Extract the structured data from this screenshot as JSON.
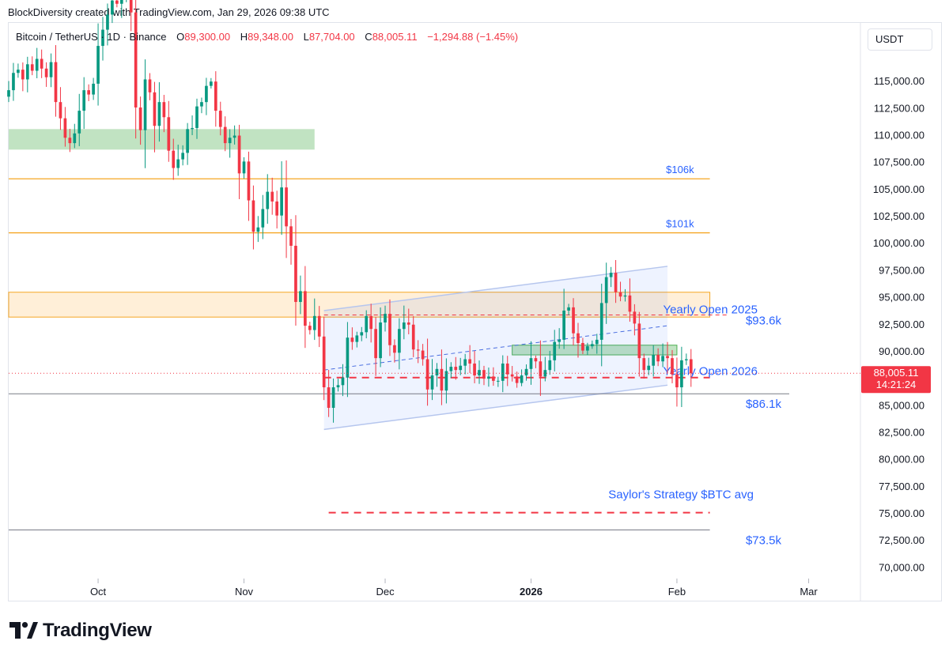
{
  "header": {
    "attribution": "BlockDiversity created with TradingView.com, Jan 29, 2026 09:38 UTC"
  },
  "legend": {
    "symbol": "Bitcoin / TetherUS · 1D · Binance",
    "open_label": "O",
    "open": "89,300.00",
    "high_label": "H",
    "high": "89,348.00",
    "low_label": "L",
    "low": "87,704.00",
    "close_label": "C",
    "close": "88,005.11",
    "change": "−1,294.88 (−1.45%)"
  },
  "currency_button": "USDT",
  "brand": {
    "name": "TradingView"
  },
  "colors": {
    "up": "#089981",
    "down": "#f23645",
    "level_orange": "#f5a623",
    "annotation_blue": "#2962ff",
    "channel_fill": "#e3ecfb"
  },
  "chart_data": {
    "type": "candlestick",
    "title": "",
    "ylim": [
      69000,
      120500
    ],
    "y_ticks": [
      115000,
      112500,
      110000,
      107500,
      105000,
      102500,
      100000,
      97500,
      95000,
      92500,
      90000,
      87500,
      85000,
      82500,
      80000,
      77500,
      75000,
      72500,
      70000
    ],
    "y_tick_labels": [
      "115,000.00",
      "112,500.00",
      "110,000.00",
      "107,500.00",
      "105,000.00",
      "102,500.00",
      "100,000.00",
      "97,500.00",
      "95,000.00",
      "92,500.00",
      "90,000.00",
      "87,500.00",
      "85,000.00",
      "82,500.00",
      "80,000.00",
      "77,500.00",
      "75,000.00",
      "72,500.00",
      "70,000.00"
    ],
    "x_range": [
      "2025-09-12",
      "2026-03-12"
    ],
    "x_ticks": [
      {
        "date": "2025-10-01",
        "label": "Oct",
        "bold": false
      },
      {
        "date": "2025-11-01",
        "label": "Nov",
        "bold": false
      },
      {
        "date": "2025-12-01",
        "label": "Dec",
        "bold": false
      },
      {
        "date": "2026-01-01",
        "label": "2026",
        "bold": true
      },
      {
        "date": "2026-02-01",
        "label": "Feb",
        "bold": false
      },
      {
        "date": "2026-03-01",
        "label": "Mar",
        "bold": false
      }
    ],
    "start_date": "2025-09-12",
    "closes": [
      114200,
      115800,
      116100,
      115200,
      116600,
      116000,
      117100,
      116200,
      115400,
      116800,
      113100,
      111600,
      109800,
      109300,
      110200,
      112300,
      114200,
      113800,
      114800,
      118300,
      119800,
      121200,
      122500,
      122200,
      123700,
      123900,
      121400,
      112600,
      110500,
      115200,
      114000,
      110900,
      113100,
      111700,
      108600,
      107000,
      107800,
      108400,
      110600,
      110700,
      112700,
      113100,
      114600,
      115000,
      112300,
      110800,
      109300,
      109800,
      110000,
      106500,
      107600,
      104000,
      101100,
      101500,
      103200,
      104800,
      103900,
      102600,
      105200,
      101600,
      99800,
      94600,
      95600,
      92400,
      92000,
      93300,
      91400,
      86700,
      84800,
      86700,
      86900,
      87600,
      91300,
      90900,
      91500,
      91800,
      93300,
      92100,
      89400,
      92700,
      93500,
      90600,
      89900,
      92100,
      92700,
      92500,
      90200,
      90100,
      89300,
      86500,
      87800,
      88400,
      86400,
      88200,
      88600,
      88300,
      88700,
      89300,
      88900,
      87800,
      88300,
      87500,
      87700,
      87300,
      87300,
      88900,
      87900,
      87700,
      87100,
      87800,
      88400,
      89400,
      89100,
      87700,
      88300,
      89200,
      90900,
      91100,
      93800,
      94100,
      91700,
      90800,
      90100,
      90500,
      90700,
      91100,
      94500,
      96900,
      97300,
      95500,
      95100,
      95200,
      93700,
      92600,
      89400,
      88300,
      88700,
      89700,
      89100,
      89600,
      89400,
      87900,
      86700,
      89200,
      89300,
      88005
    ],
    "levels": [
      {
        "value": 106000,
        "label": "$106k"
      },
      {
        "value": 101000,
        "label": "$101k"
      },
      {
        "value": 93600,
        "label": "$93.6k"
      },
      {
        "value": 86100,
        "label": "$86.1k"
      },
      {
        "value": 73500,
        "label": "$73.5k"
      }
    ],
    "annotations": [
      {
        "label": "Yearly Open 2025",
        "value": 93400
      },
      {
        "label": "Yearly Open 2026",
        "value": 87600
      },
      {
        "label": "Saylor's Strategy $BTC avg",
        "value": 75100
      }
    ],
    "zones": [
      {
        "low": 108700,
        "high": 110600,
        "start": "2025-09-12",
        "end": "2025-11-16",
        "color": "green"
      },
      {
        "low": 93200,
        "high": 95500,
        "start": "2025-09-12",
        "end": "2026-02-08",
        "color": "orange"
      },
      {
        "low": 89700,
        "high": 90600,
        "start": "2025-12-28",
        "end": "2026-02-01",
        "color": "green"
      }
    ],
    "channel": {
      "upper": [
        {
          "date": "2025-11-18",
          "value": 93800
        },
        {
          "date": "2026-01-30",
          "value": 97900
        }
      ],
      "lower": [
        {
          "date": "2025-11-18",
          "value": 82800
        },
        {
          "date": "2026-01-30",
          "value": 86900
        }
      ],
      "mid": [
        {
          "date": "2025-11-18",
          "value": 88300
        },
        {
          "date": "2026-01-30",
          "value": 92400
        }
      ]
    },
    "last_price": {
      "value": 88005.11,
      "label": "88,005.11",
      "countdown": "14:21:24"
    }
  }
}
